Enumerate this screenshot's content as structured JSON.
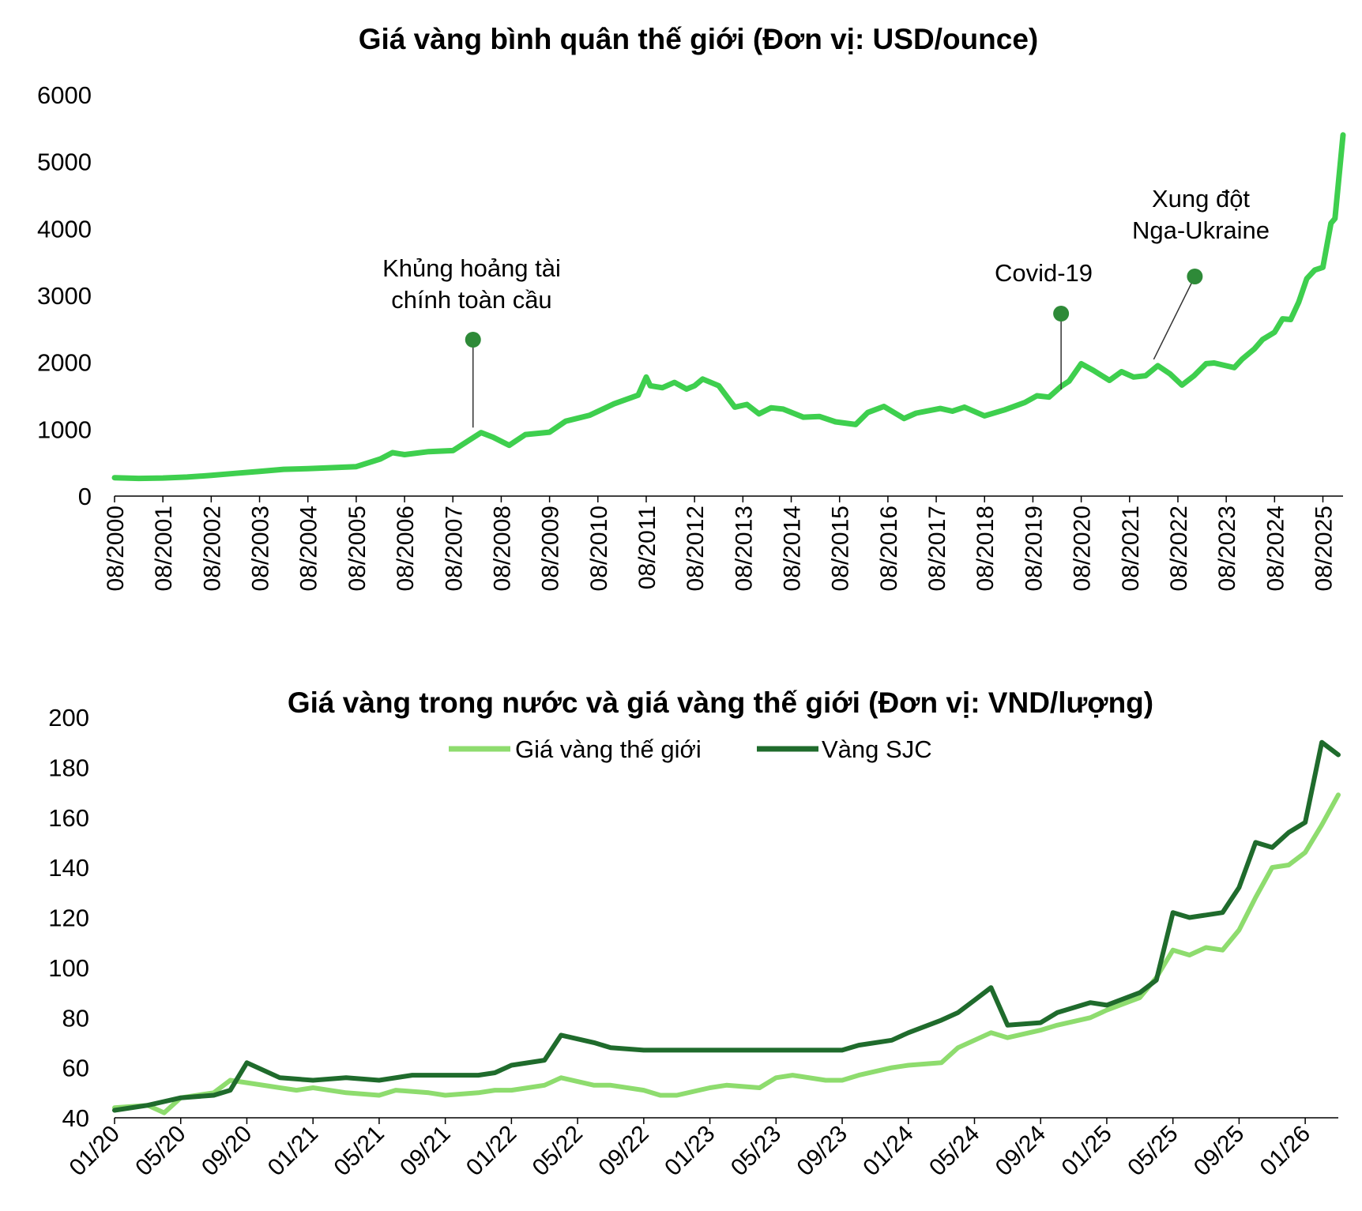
{
  "chart_data": [
    {
      "type": "line",
      "title": "Giá vàng bình quân thế giới (Đơn vị: USD/ounce)",
      "xlabel": "",
      "ylabel": "",
      "ylim": [
        0,
        6000
      ],
      "y_ticks": [
        0,
        1000,
        2000,
        3000,
        4000,
        5000,
        6000
      ],
      "x_ticks": [
        "08/2000",
        "08/2001",
        "08/2002",
        "08/2003",
        "08/2004",
        "08/2005",
        "08/2006",
        "08/2007",
        "08/2008",
        "08/2009",
        "08/2010",
        "08/2011",
        "08/2012",
        "08/2013",
        "08/2014",
        "08/2015",
        "08/2016",
        "08/2017",
        "08/2018",
        "08/2019",
        "08/2020",
        "08/2021",
        "08/2022",
        "08/2023",
        "08/2024",
        "08/2025"
      ],
      "x_range": [
        "2000-08",
        "2026-01"
      ],
      "grid": false,
      "color": "#3ecf4e",
      "series": [
        {
          "x": [
            "2000-08",
            "2001-02",
            "2001-08",
            "2002-02",
            "2002-08",
            "2003-02",
            "2003-08",
            "2004-02",
            "2004-08",
            "2005-02",
            "2005-08",
            "2006-02",
            "2006-05",
            "2006-08",
            "2007-02",
            "2007-08",
            "2008-03",
            "2008-06",
            "2008-10",
            "2009-02",
            "2009-08",
            "2009-12",
            "2010-06",
            "2010-12",
            "2011-06",
            "2011-08",
            "2011-09",
            "2011-12",
            "2012-03",
            "2012-06",
            "2012-08",
            "2012-10",
            "2013-02",
            "2013-06",
            "2013-09",
            "2013-12",
            "2014-03",
            "2014-06",
            "2014-11",
            "2015-03",
            "2015-07",
            "2015-12",
            "2016-03",
            "2016-07",
            "2016-12",
            "2017-03",
            "2017-09",
            "2017-12",
            "2018-03",
            "2018-08",
            "2019-01",
            "2019-06",
            "2019-09",
            "2019-12",
            "2020-03",
            "2020-05",
            "2020-08",
            "2020-11",
            "2021-03",
            "2021-06",
            "2021-09",
            "2021-12",
            "2022-03",
            "2022-06",
            "2022-09",
            "2022-12",
            "2023-03",
            "2023-05",
            "2023-10",
            "2023-12",
            "2024-03",
            "2024-05",
            "2024-08",
            "2024-10",
            "2024-12",
            "2025-02",
            "2025-04",
            "2025-06",
            "2025-08",
            "2025-10",
            "2025-11",
            "2026-01"
          ],
          "values": [
            275,
            265,
            270,
            285,
            310,
            340,
            370,
            400,
            410,
            425,
            440,
            555,
            650,
            620,
            665,
            680,
            950,
            880,
            760,
            920,
            955,
            1120,
            1210,
            1380,
            1510,
            1780,
            1650,
            1620,
            1700,
            1600,
            1650,
            1750,
            1650,
            1330,
            1370,
            1230,
            1320,
            1300,
            1180,
            1190,
            1110,
            1070,
            1250,
            1340,
            1160,
            1240,
            1310,
            1270,
            1330,
            1200,
            1290,
            1400,
            1500,
            1480,
            1640,
            1720,
            1980,
            1880,
            1730,
            1860,
            1780,
            1800,
            1950,
            1830,
            1660,
            1800,
            1980,
            1990,
            1920,
            2050,
            2200,
            2340,
            2450,
            2650,
            2640,
            2900,
            3250,
            3380,
            3420,
            4080,
            4150,
            5400
          ]
        }
      ],
      "annotations": [
        {
          "label": "Khủng hoảng tài chính toàn cầu",
          "x": "2008-01",
          "y": 930
        },
        {
          "label": "Covid-19",
          "x": "2020-03",
          "y": 1500
        },
        {
          "label": "Xung đột Nga-Ukraine",
          "x": "2022-02",
          "y": 1950
        }
      ]
    },
    {
      "type": "line",
      "title": "Giá vàng trong nước và giá vàng thế giới (Đơn vị: VND/lượng)",
      "xlabel": "",
      "ylabel": "",
      "ylim": [
        40,
        200
      ],
      "y_ticks": [
        40,
        60,
        80,
        100,
        120,
        140,
        160,
        180,
        200
      ],
      "x_ticks": [
        "01/20",
        "05/20",
        "09/20",
        "01/21",
        "05/21",
        "09/21",
        "01/22",
        "05/22",
        "09/22",
        "01/23",
        "05/23",
        "09/23",
        "01/24",
        "05/24",
        "09/24",
        "01/25",
        "05/25",
        "09/25",
        "01/26"
      ],
      "x_range": [
        "2020-01",
        "2026-03"
      ],
      "grid": false,
      "legend": "top-center",
      "series": [
        {
          "name": "Giá vàng thế giới",
          "color": "#8edc6e",
          "x": [
            "2020-01",
            "2020-03",
            "2020-04",
            "2020-05",
            "2020-07",
            "2020-08",
            "2020-09",
            "2020-11",
            "2020-12",
            "2021-01",
            "2021-03",
            "2021-05",
            "2021-06",
            "2021-08",
            "2021-09",
            "2021-11",
            "2021-12",
            "2022-01",
            "2022-03",
            "2022-04",
            "2022-06",
            "2022-07",
            "2022-09",
            "2022-10",
            "2022-11",
            "2023-01",
            "2023-02",
            "2023-04",
            "2023-05",
            "2023-06",
            "2023-08",
            "2023-09",
            "2023-10",
            "2023-12",
            "2024-01",
            "2024-03",
            "2024-04",
            "2024-06",
            "2024-07",
            "2024-09",
            "2024-10",
            "2024-12",
            "2025-01",
            "2025-03",
            "2025-04",
            "2025-05",
            "2025-06",
            "2025-07",
            "2025-08",
            "2025-09",
            "2025-10",
            "2025-11",
            "2025-12",
            "2026-01",
            "2026-02",
            "2026-03"
          ],
          "values": [
            44,
            45,
            42,
            48,
            50,
            55,
            54,
            52,
            51,
            52,
            50,
            49,
            51,
            50,
            49,
            50,
            51,
            51,
            53,
            56,
            53,
            53,
            51,
            49,
            49,
            52,
            53,
            52,
            56,
            57,
            55,
            55,
            57,
            60,
            61,
            62,
            68,
            74,
            72,
            75,
            77,
            80,
            83,
            88,
            96,
            107,
            105,
            108,
            107,
            115,
            128,
            140,
            141,
            146,
            157,
            169
          ]
        },
        {
          "name": "Vàng SJC",
          "color": "#1f6b2c",
          "x": [
            "2020-01",
            "2020-03",
            "2020-05",
            "2020-07",
            "2020-08",
            "2020-09",
            "2020-11",
            "2021-01",
            "2021-03",
            "2021-05",
            "2021-07",
            "2021-09",
            "2021-11",
            "2021-12",
            "2022-01",
            "2022-03",
            "2022-04",
            "2022-06",
            "2022-07",
            "2022-09",
            "2022-10",
            "2022-12",
            "2023-01",
            "2023-03",
            "2023-06",
            "2023-09",
            "2023-10",
            "2023-12",
            "2024-01",
            "2024-03",
            "2024-04",
            "2024-05",
            "2024-06",
            "2024-07",
            "2024-09",
            "2024-10",
            "2024-12",
            "2025-01",
            "2025-03",
            "2025-04",
            "2025-05",
            "2025-06",
            "2025-08",
            "2025-09",
            "2025-10",
            "2025-11",
            "2025-12",
            "2026-01",
            "2026-02",
            "2026-03"
          ],
          "values": [
            43,
            45,
            48,
            49,
            51,
            62,
            56,
            55,
            56,
            55,
            57,
            57,
            57,
            58,
            61,
            63,
            73,
            70,
            68,
            67,
            67,
            67,
            67,
            67,
            67,
            67,
            69,
            71,
            74,
            79,
            82,
            87,
            92,
            77,
            78,
            82,
            86,
            85,
            90,
            95,
            122,
            120,
            122,
            132,
            150,
            148,
            154,
            158,
            190,
            185
          ]
        }
      ]
    }
  ]
}
